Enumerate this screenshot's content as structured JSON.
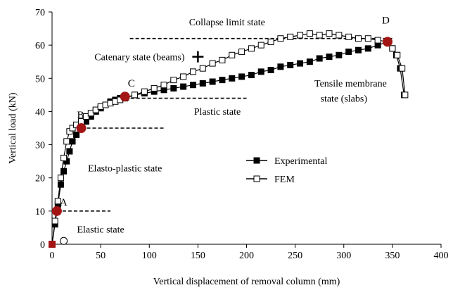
{
  "chart_data": {
    "type": "line",
    "xlabel": "Vertical displacement of removal column (mm)",
    "ylabel": "Vertical load (kN)",
    "xlim": [
      0,
      400
    ],
    "ylim": [
      0,
      70
    ],
    "xticks": [
      0,
      50,
      100,
      150,
      200,
      250,
      300,
      350,
      400
    ],
    "yticks": [
      0,
      10,
      20,
      30,
      40,
      50,
      60,
      70
    ],
    "grid": false,
    "legend_position": "center-right",
    "series": [
      {
        "name": "Experimental",
        "marker": "filled-square",
        "color": "#000000",
        "x": [
          0,
          3,
          6,
          9,
          12,
          15,
          18,
          21,
          25,
          30,
          35,
          40,
          45,
          50,
          55,
          60,
          65,
          70,
          76,
          85,
          95,
          105,
          115,
          125,
          135,
          145,
          155,
          165,
          175,
          185,
          195,
          205,
          215,
          225,
          235,
          245,
          255,
          265,
          275,
          285,
          295,
          305,
          315,
          325,
          335,
          345,
          350,
          354,
          358,
          362
        ],
        "y": [
          0,
          6,
          12,
          18,
          22,
          25,
          28,
          31,
          33,
          35,
          37,
          38.5,
          40,
          41,
          42,
          43,
          43.5,
          44,
          44.3,
          45,
          45.5,
          46,
          46.5,
          47,
          47.5,
          48,
          48.5,
          49,
          49.5,
          50,
          50.5,
          51,
          52,
          52.5,
          53.5,
          54,
          54.5,
          55,
          56,
          56.5,
          57,
          58,
          58.5,
          59,
          60,
          61,
          59,
          57,
          53,
          45
        ]
      },
      {
        "name": "FEM",
        "marker": "open-square",
        "color": "#000000",
        "x": [
          0,
          3,
          6,
          9,
          12,
          15,
          18,
          21,
          25,
          30,
          35,
          40,
          45,
          50,
          55,
          60,
          65,
          70,
          75,
          85,
          95,
          105,
          115,
          125,
          135,
          145,
          155,
          165,
          175,
          185,
          195,
          205,
          215,
          225,
          235,
          245,
          255,
          265,
          275,
          285,
          295,
          305,
          315,
          325,
          335,
          345,
          350,
          355,
          360,
          363
        ],
        "y": [
          0,
          7,
          13,
          20,
          26,
          31,
          34,
          35,
          36,
          37,
          38.5,
          39.5,
          40.5,
          41.5,
          42,
          42.5,
          43,
          43.5,
          44,
          45,
          46,
          47,
          48,
          49.5,
          50.5,
          52,
          53,
          54.5,
          55.5,
          57,
          58,
          59,
          60,
          61,
          62,
          62.5,
          63,
          63.5,
          63,
          63.5,
          63,
          62.5,
          62,
          62,
          61.5,
          61,
          59,
          57,
          53,
          45
        ]
      }
    ],
    "key_points": [
      {
        "label": "A",
        "x": 5,
        "y": 10
      },
      {
        "label": "B",
        "x": 30,
        "y": 35
      },
      {
        "label": "C",
        "x": 75,
        "y": 44.5
      },
      {
        "label": "D",
        "x": 345,
        "y": 61
      }
    ],
    "key_point_color": "#a31515",
    "reference_lines": [
      {
        "y": 10,
        "x_from": 5,
        "x_to": 60
      },
      {
        "y": 35,
        "x_from": 30,
        "x_to": 115
      },
      {
        "y": 44,
        "x_from": 75,
        "x_to": 200
      },
      {
        "y": 62,
        "x_from": 80,
        "x_to": 350
      }
    ],
    "annotations": [
      {
        "text": "Collapse limit state",
        "x": 180,
        "y": 66
      },
      {
        "text": "Catenary state (beams)",
        "x": 90,
        "y": 55.5
      },
      {
        "text": "Tensile membrane",
        "x": 307,
        "y": 47.5
      },
      {
        "text": "state (slabs)",
        "x": 300,
        "y": 43
      },
      {
        "text": "Plastic state",
        "x": 170,
        "y": 39
      },
      {
        "text": "Elasto-plastic state",
        "x": 75,
        "y": 22
      },
      {
        "text": "Elastic state",
        "x": 50,
        "y": 3.5
      }
    ],
    "plus_marker": {
      "x": 150,
      "y": 56.5
    },
    "open_circle": {
      "x": 12,
      "y": 1
    }
  }
}
